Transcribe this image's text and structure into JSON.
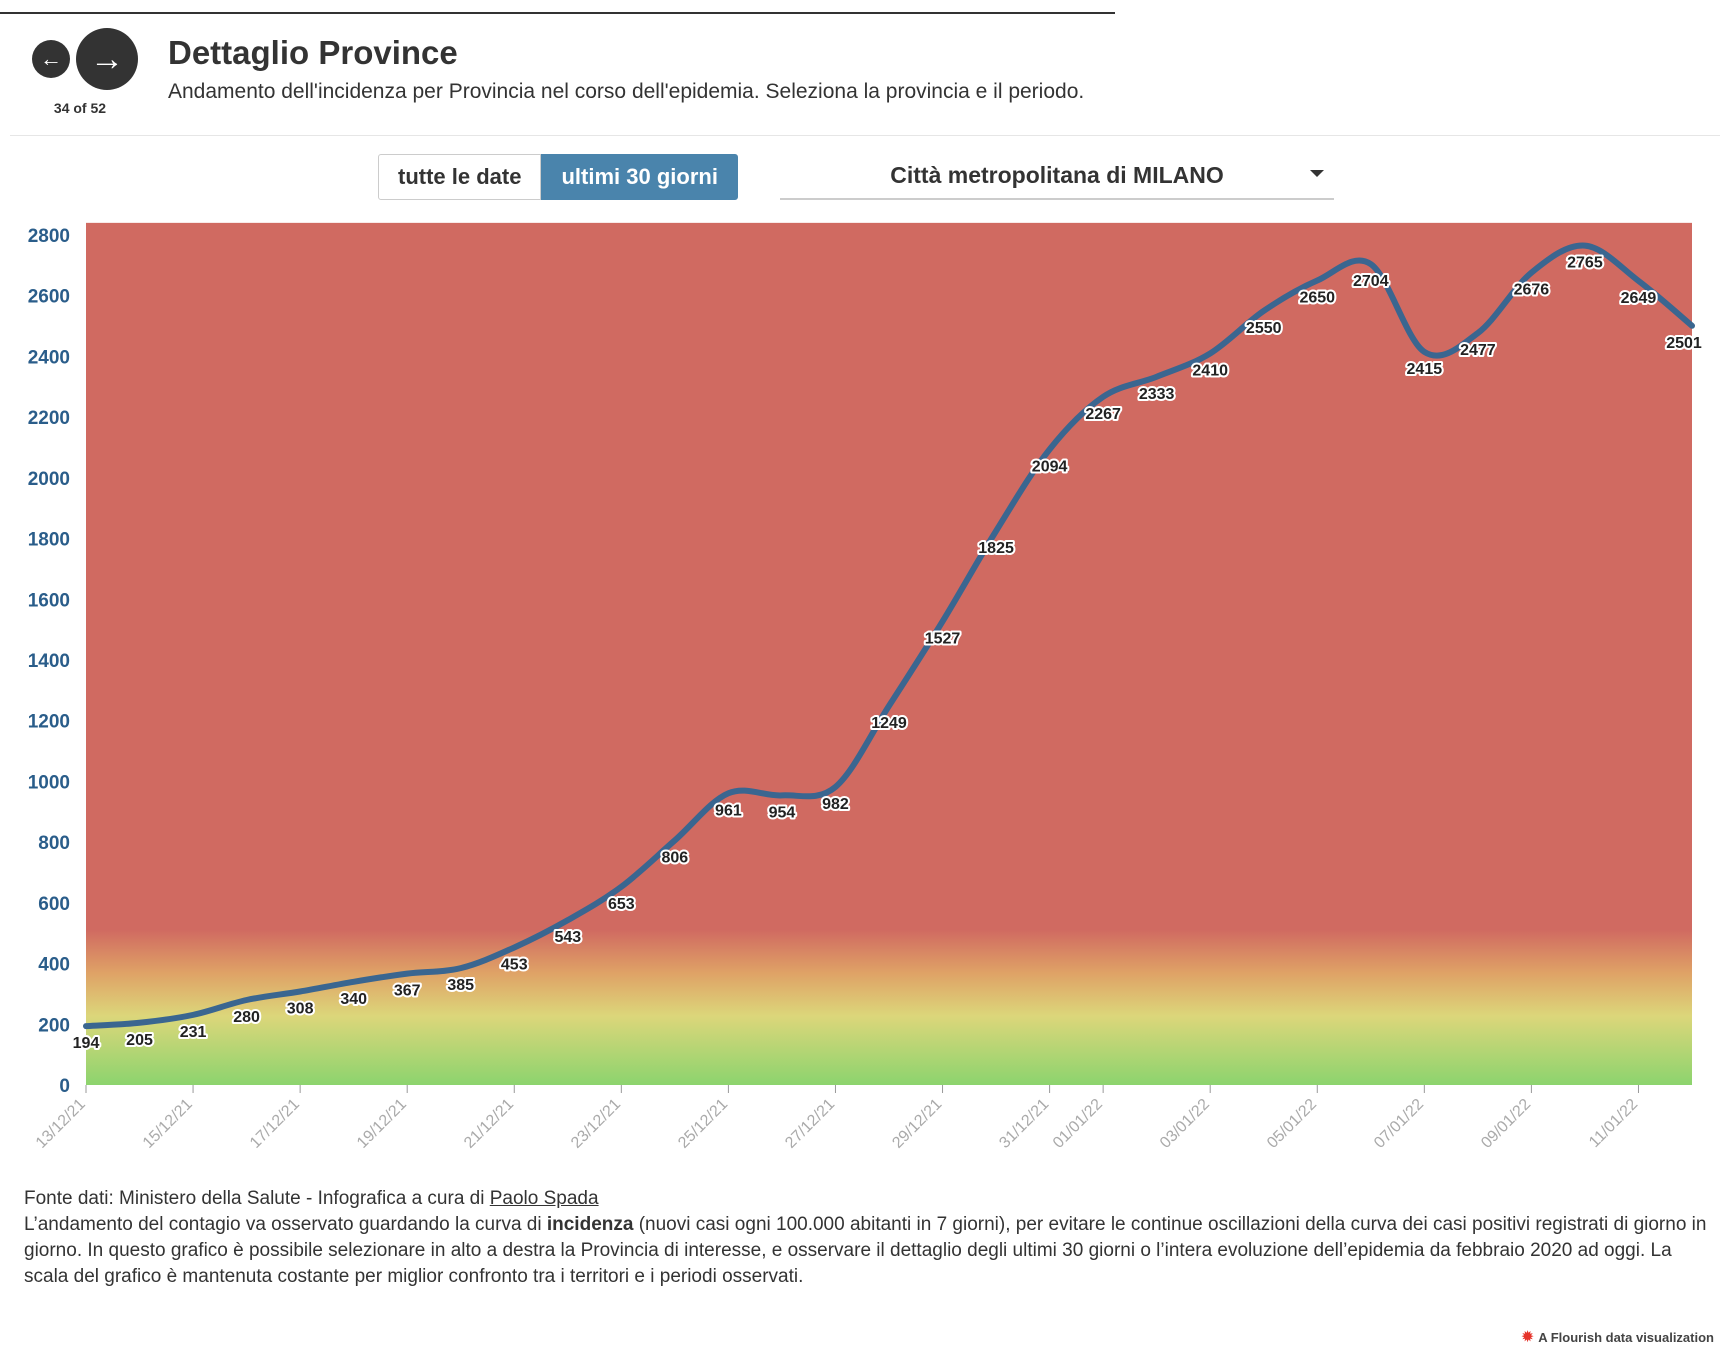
{
  "nav": {
    "counter": "34 of 52",
    "prev_icon": "arrow-left-icon",
    "next_icon": "arrow-right-icon"
  },
  "header": {
    "title": "Dettaglio Province",
    "subtitle": "Andamento dell'incidenza per Provincia nel corso dell'epidemia. Seleziona la provincia e il periodo."
  },
  "controls": {
    "buttons": [
      "tutte le date",
      "ultimi 30 giorni"
    ],
    "active": "ultimi 30 giorni",
    "province": "Città metropolitana di MILANO"
  },
  "chart_data": {
    "type": "line",
    "title": "",
    "xlabel": "",
    "ylabel": "",
    "ylim": [
      0,
      2800
    ],
    "yticks": [
      0,
      200,
      400,
      600,
      800,
      1000,
      1200,
      1400,
      1600,
      1800,
      2000,
      2200,
      2400,
      2600,
      2800
    ],
    "grid": false,
    "x": [
      "13/12/21",
      "14/12/21",
      "15/12/21",
      "16/12/21",
      "17/12/21",
      "18/12/21",
      "19/12/21",
      "20/12/21",
      "21/12/21",
      "22/12/21",
      "23/12/21",
      "24/12/21",
      "25/12/21",
      "26/12/21",
      "27/12/21",
      "28/12/21",
      "29/12/21",
      "30/12/21",
      "31/12/21",
      "01/01/22",
      "02/01/22",
      "03/01/22",
      "04/01/22",
      "05/01/22",
      "06/01/22",
      "07/01/22",
      "08/01/22",
      "09/01/22",
      "10/01/22",
      "11/01/22",
      "12/01/22"
    ],
    "xticks": [
      "13/12/21",
      "15/12/21",
      "17/12/21",
      "19/12/21",
      "21/12/21",
      "23/12/21",
      "25/12/21",
      "27/12/21",
      "29/12/21",
      "31/12/21",
      "01/01/22",
      "03/01/22",
      "05/01/22",
      "07/01/22",
      "09/01/22",
      "11/01/22"
    ],
    "series": [
      {
        "values": [
          194,
          205,
          231,
          280,
          308,
          340,
          367,
          385,
          453,
          543,
          653,
          806,
          961,
          954,
          982,
          1249,
          1527,
          1825,
          2094,
          2267,
          2333,
          2410,
          2550,
          2650,
          2704,
          2415,
          2477,
          2676,
          2765,
          2649,
          2501
        ]
      }
    ],
    "colors": {
      "line": "#3a6690",
      "high": "#d06a61",
      "mid": "#dcd67a",
      "low": "#8cd46e",
      "tick": "#2a5d8a"
    }
  },
  "footer": {
    "source_prefix": "Fonte dati: Ministero della Salute - Infografica a cura di ",
    "author": "Paolo Spada",
    "text_before": "L’andamento del contagio va osservato guardando la curva di ",
    "text_bold": "incidenza",
    "text_after": " (nuovi casi ogni 100.000 abitanti in 7 giorni), per evitare le continue oscillazioni della curva dei casi positivi registrati di giorno in giorno. In questo grafico è possibile selezionare in alto a destra la Provincia di interesse, e osservare il dettaglio degli ultimi 30 giorni o l’intera evoluzione dell’epidemia da febbraio 2020 ad oggi. La scala del grafico è mantenuta costante per miglior confronto tra i territori e i periodi osservati."
  },
  "credit": {
    "icon": "flourish-logo-icon",
    "text": "A Flourish data visualization"
  }
}
